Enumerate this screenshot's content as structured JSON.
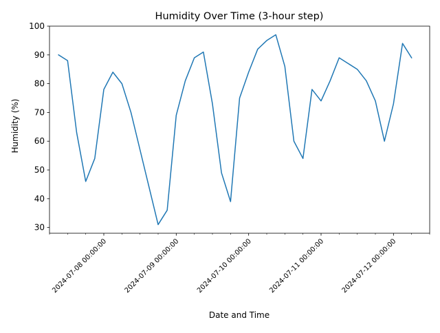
{
  "chart_data": {
    "type": "line",
    "title": "Humidity Over Time (3-hour step)",
    "xlabel": "Date and Time",
    "ylabel": "Humidity (%)",
    "line_color": "#1f77b4",
    "x_start": "2024-07-07 09:00:00",
    "x_step_hours": 3,
    "xlim": [
      "2024-07-07 06:00:00",
      "2024-07-12 12:00:00"
    ],
    "ylim": [
      28,
      100
    ],
    "grid": false,
    "x_ticks": [
      "2024-07-08 00:00:00",
      "2024-07-09 00:00:00",
      "2024-07-10 00:00:00",
      "2024-07-11 00:00:00",
      "2024-07-12 00:00:00"
    ],
    "y_ticks": [
      "30",
      "40",
      "50",
      "60",
      "70",
      "80",
      "90",
      "100"
    ],
    "series": [
      {
        "values": [
          90,
          88,
          63,
          46,
          54,
          78,
          84,
          80,
          70,
          57,
          44,
          31,
          36,
          69,
          81,
          89,
          91,
          73,
          49,
          39,
          75,
          84,
          92,
          95,
          97,
          86,
          60,
          54,
          78,
          74,
          81,
          89,
          87,
          85,
          81,
          74,
          60,
          73,
          94,
          89
        ]
      }
    ]
  }
}
